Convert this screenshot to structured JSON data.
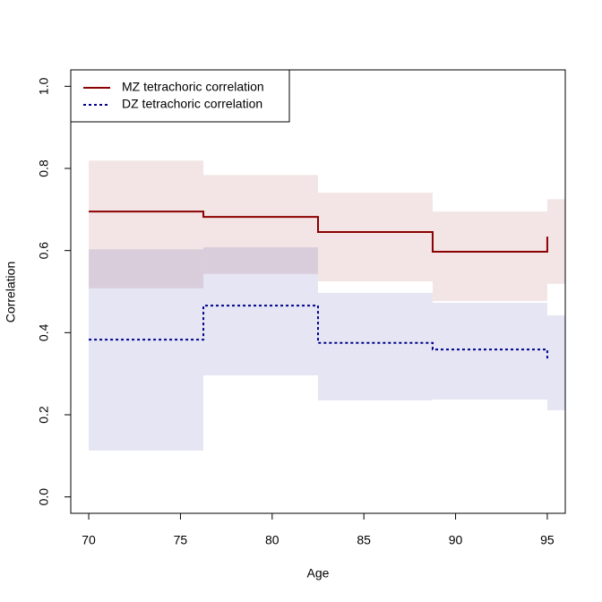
{
  "chart_data": {
    "type": "step",
    "x_label": "Age",
    "y_label": "Correlation",
    "xlim": [
      69.02,
      95.98
    ],
    "ylim": [
      -0.04,
      1.04
    ],
    "xticks": [
      70,
      75,
      80,
      85,
      90,
      95
    ],
    "yticks": [
      {
        "value": 0,
        "label": "0.0"
      },
      0.2,
      0.4,
      0.6,
      0.8,
      {
        "value": 1,
        "label": "1.0"
      }
    ],
    "grid": false,
    "legend": "top-left",
    "band_opacity": 0.1,
    "x": [
      70,
      76.25,
      82.5,
      88.75,
      95
    ],
    "series": [
      {
        "name": "MZ tetrachoric correlation",
        "color": "#8b0000",
        "dash": false,
        "values": [
          0.695,
          0.682,
          0.645,
          0.597,
          0.634
        ],
        "lower": [
          0.508,
          0.543,
          0.525,
          0.477,
          0.519
        ],
        "upper": [
          0.819,
          0.784,
          0.741,
          0.695,
          0.725
        ]
      },
      {
        "name": "DZ tetrachoric correlation",
        "color": "#00008b",
        "dash": true,
        "values": [
          0.383,
          0.466,
          0.375,
          0.359,
          0.333
        ],
        "lower": [
          0.113,
          0.296,
          0.235,
          0.237,
          0.211
        ],
        "upper": [
          0.603,
          0.608,
          0.497,
          0.473,
          0.442
        ]
      }
    ]
  }
}
